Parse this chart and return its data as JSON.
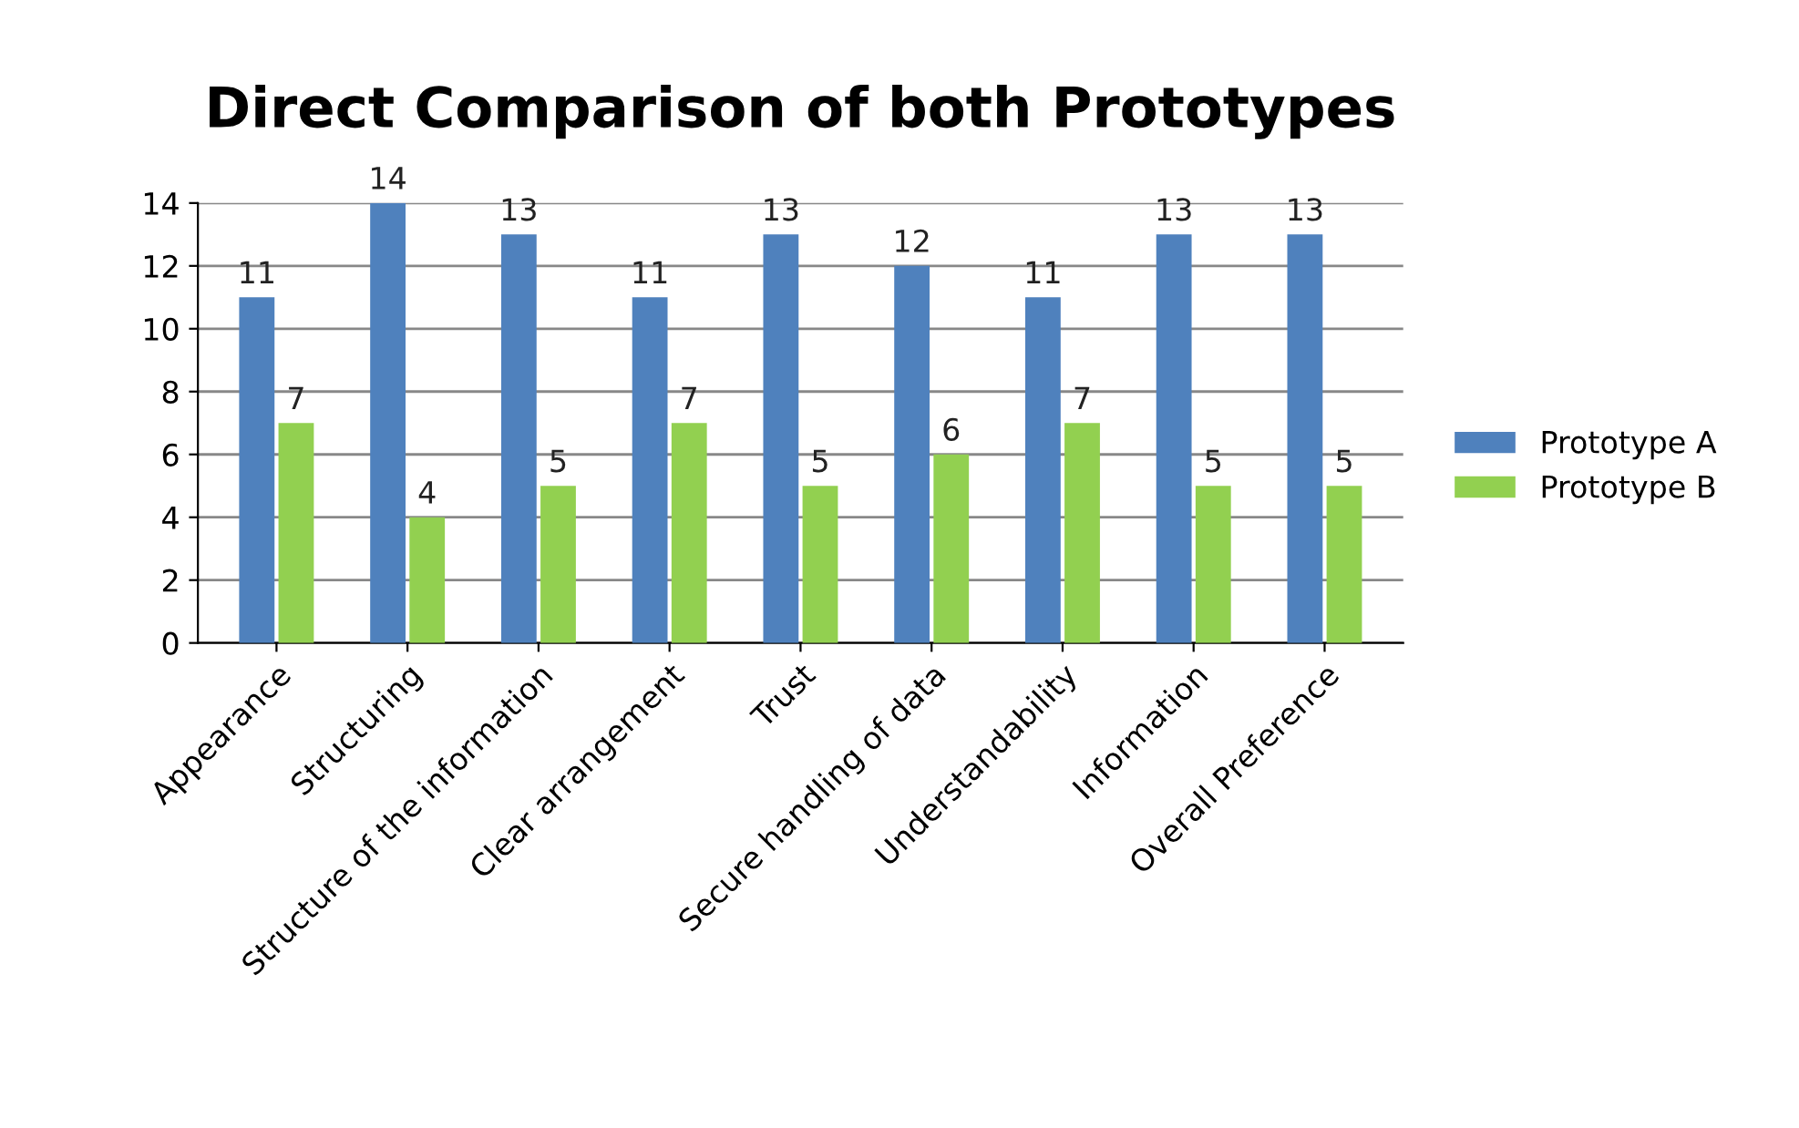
{
  "chart_data": {
    "type": "bar",
    "title": "Direct Comparison of both Prototypes",
    "categories": [
      "Appearance",
      "Structuring",
      "Structure of the information",
      "Clear arrangement",
      "Trust",
      "Secure handling of data",
      "Understandability",
      "Information",
      "Overall Preference"
    ],
    "series": [
      {
        "name": "Prototype A",
        "color": "#4f81bd",
        "values": [
          11,
          14,
          13,
          11,
          13,
          12,
          11,
          13,
          13
        ]
      },
      {
        "name": "Prototype B",
        "color": "#92d050",
        "values": [
          7,
          4,
          5,
          7,
          5,
          6,
          7,
          5,
          5
        ]
      }
    ],
    "ylim": [
      0,
      14
    ],
    "yticks": [
      0,
      2,
      4,
      6,
      8,
      10,
      12,
      14
    ],
    "grid": "y",
    "legend": "right",
    "data_labels": true
  }
}
